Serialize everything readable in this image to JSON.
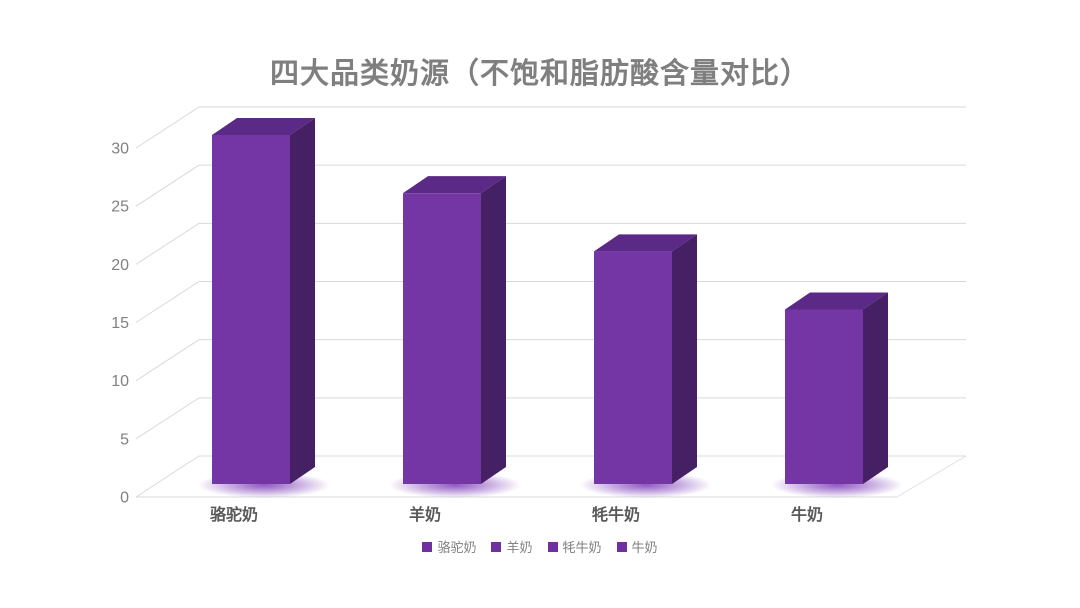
{
  "slide": {
    "background": "#FFFFFF"
  },
  "chart_data": {
    "type": "bar",
    "style": "3d-column",
    "title": "四大品类奶源（不饱和脂肪酸含量对比）",
    "categories": [
      "骆驼奶",
      "羊奶",
      "牦牛奶",
      "牛奶"
    ],
    "values": [
      30,
      25,
      20,
      15
    ],
    "xlabel": "",
    "ylabel": "",
    "ylim": [
      0,
      30
    ],
    "ytick_step": 5,
    "yticks": [
      0,
      5,
      10,
      15,
      20,
      25,
      30
    ],
    "grid": true,
    "legend": {
      "position": "bottom",
      "entries": [
        "骆驼奶",
        "羊奶",
        "牦牛奶",
        "牛奶"
      ]
    },
    "colors": {
      "bar_front": "#7435A5",
      "bar_top": "#5B2A86",
      "bar_side": "#462064",
      "bar_glow": "#8A4FBF",
      "legend_marker": "#7030A0",
      "gridline": "#D9D9D9",
      "floor_edge": "#E0E0E0",
      "title_text": "#7F7F7F",
      "tick_text": "#808080",
      "category_text": "#595959",
      "legend_text": "#808080"
    }
  }
}
